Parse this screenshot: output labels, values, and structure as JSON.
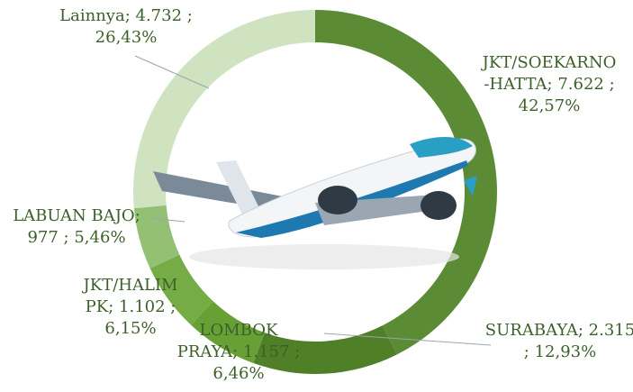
{
  "chart_data": {
    "type": "donut",
    "label_separator": ";",
    "categories": [
      "JKT/SOEKARNO-HATTA",
      "SURABAYA",
      "LOMBOK PRAYA",
      "JKT/HALIM PK",
      "LABUAN BAJO",
      "Lainnya"
    ],
    "counts": [
      7622,
      2315,
      1157,
      1102,
      977,
      4732
    ],
    "count_labels": [
      "7.622",
      "2.315",
      "1.157",
      "1.102",
      "977",
      "4.732"
    ],
    "values": [
      42.57,
      12.93,
      6.46,
      6.15,
      5.46,
      26.43
    ],
    "value_labels": [
      "42,57%",
      "12,93%",
      "6,46%",
      "6,15%",
      "5,46%",
      "26,43%"
    ],
    "colors": [
      "#5b8c35",
      "#4f7f27",
      "#67a034",
      "#76ac45",
      "#94c073",
      "#cfe3c0"
    ]
  }
}
